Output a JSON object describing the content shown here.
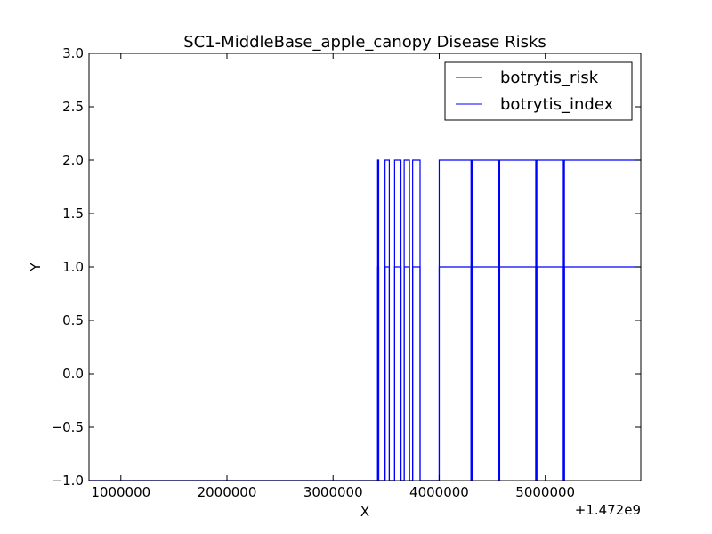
{
  "chart_data": {
    "type": "line",
    "title": "SC1-MiddleBase_apple_canopy Disease Risks",
    "xlabel": "X",
    "ylabel": "Y",
    "x_offset_label": "+1.472e9",
    "xlim": [
      700000,
      5900000
    ],
    "ylim": [
      -1.0,
      3.0
    ],
    "xticks": [
      1000000,
      2000000,
      3000000,
      4000000,
      5000000
    ],
    "xtick_labels": [
      "1000000",
      "2000000",
      "3000000",
      "4000000",
      "5000000"
    ],
    "yticks": [
      -1.0,
      -0.5,
      0.0,
      0.5,
      1.0,
      1.5,
      2.0,
      2.5,
      3.0
    ],
    "ytick_labels": [
      "−1.0",
      "−0.5",
      "0.0",
      "0.5",
      "1.0",
      "1.5",
      "2.0",
      "2.5",
      "3.0"
    ],
    "legend_position": "top-right",
    "series": [
      {
        "name": "botrytis_risk",
        "color": "#0000ff",
        "x": [
          700000,
          3420000,
          3420000,
          3430000,
          3430000,
          3490000,
          3490000,
          3530000,
          3530000,
          3580000,
          3580000,
          3640000,
          3640000,
          3670000,
          3670000,
          3720000,
          3720000,
          3750000,
          3750000,
          3820000,
          3820000,
          4000000,
          4000000,
          4300000,
          4300000,
          4310000,
          4310000,
          4560000,
          4560000,
          4570000,
          4570000,
          4910000,
          4910000,
          4920000,
          4920000,
          5170000,
          5170000,
          5180000,
          5180000,
          5900000
        ],
        "values": [
          -1,
          -1,
          2,
          2,
          -1,
          -1,
          2,
          2,
          -1,
          -1,
          2,
          2,
          -1,
          -1,
          2,
          2,
          -1,
          -1,
          2,
          2,
          -1,
          -1,
          2,
          2,
          -1,
          -1,
          2,
          2,
          -1,
          -1,
          2,
          2,
          -1,
          -1,
          2,
          2,
          -1,
          -1,
          2,
          2
        ]
      },
      {
        "name": "botrytis_index",
        "color": "#0000ff",
        "x": [
          700000,
          3420000,
          3420000,
          3430000,
          3430000,
          3490000,
          3490000,
          3530000,
          3530000,
          3580000,
          3580000,
          3640000,
          3640000,
          3670000,
          3670000,
          3720000,
          3720000,
          3750000,
          3750000,
          3820000,
          3820000,
          4000000,
          4000000,
          4300000,
          4300000,
          4310000,
          4310000,
          4560000,
          4560000,
          4570000,
          4570000,
          4910000,
          4910000,
          4920000,
          4920000,
          5170000,
          5170000,
          5180000,
          5180000,
          5900000
        ],
        "values": [
          -1,
          -1,
          1,
          1,
          -1,
          -1,
          1,
          1,
          -1,
          -1,
          1,
          1,
          -1,
          -1,
          1,
          1,
          -1,
          -1,
          1,
          1,
          -1,
          -1,
          1,
          1,
          -1,
          -1,
          1,
          1,
          -1,
          -1,
          1,
          1,
          -1,
          -1,
          1,
          1,
          -1,
          -1,
          1,
          1
        ]
      }
    ]
  }
}
